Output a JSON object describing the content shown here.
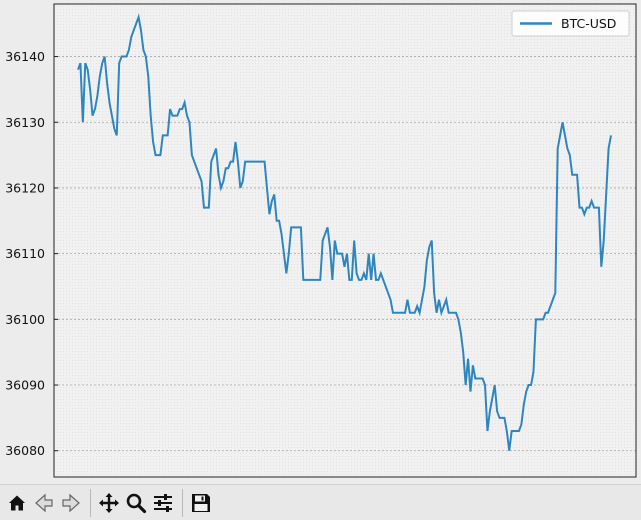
{
  "chart_data": {
    "type": "line",
    "title": "",
    "xlabel": "",
    "ylabel": "",
    "ylim": [
      36076,
      36148
    ],
    "yticks": [
      36080,
      36090,
      36100,
      36110,
      36120,
      36130,
      36140
    ],
    "grid": true,
    "legend_position": "top-right",
    "series": [
      {
        "name": "BTC-USD",
        "color": "#2e86c1",
        "values": [
          36138,
          36139,
          36130,
          36139,
          36138,
          36135,
          36131,
          36132,
          36134,
          36137,
          36139,
          36140,
          36136,
          36133,
          36131,
          36129,
          36128,
          36139,
          36140,
          36140,
          36140,
          36141,
          36143,
          36144,
          36145,
          36146,
          36144,
          36141,
          36140,
          36137,
          36131,
          36127,
          36125,
          36125,
          36125,
          36128,
          36128,
          36128,
          36132,
          36131,
          36131,
          36131,
          36132,
          36132,
          36133,
          36131,
          36130,
          36125,
          36124,
          36123,
          36122,
          36121,
          36117,
          36117,
          36117,
          36124,
          36125,
          36126,
          36122,
          36120,
          36121,
          36123,
          36123,
          36124,
          36124,
          36127,
          36124,
          36120,
          36121,
          36124,
          36124,
          36124,
          36124,
          36124,
          36124,
          36124,
          36124,
          36124,
          36120,
          36116,
          36118,
          36119,
          36115,
          36115,
          36113,
          36110,
          36107,
          36110,
          36114,
          36114,
          36114,
          36114,
          36114,
          36106,
          36106,
          36106,
          36106,
          36106,
          36106,
          36106,
          36106,
          36112,
          36113,
          36114,
          36111,
          36106,
          36112,
          36110,
          36110,
          36110,
          36108,
          36110,
          36106,
          36106,
          36112,
          36107,
          36106,
          36106,
          36107,
          36106,
          36110,
          36106,
          36110,
          36106,
          36106,
          36107,
          36106,
          36105,
          36104,
          36103,
          36101,
          36101,
          36101,
          36101,
          36101,
          36101,
          36103,
          36101,
          36101,
          36101,
          36102,
          36101,
          36103,
          36105,
          36109,
          36111,
          36112,
          36104,
          36101,
          36103,
          36101,
          36102,
          36103,
          36101,
          36101,
          36101,
          36101,
          36100,
          36098,
          36095,
          36090,
          36094,
          36089,
          36093,
          36091,
          36091,
          36091,
          36091,
          36090,
          36083,
          36086,
          36088,
          36090,
          36086,
          36085,
          36085,
          36085,
          36083,
          36080,
          36083,
          36083,
          36083,
          36083,
          36084,
          36087,
          36089,
          36090,
          36090,
          36092,
          36100,
          36100,
          36100,
          36100,
          36101,
          36101,
          36102,
          36103,
          36104,
          36126,
          36128,
          36130,
          36128,
          36126,
          36125,
          36122,
          36122,
          36122,
          36117,
          36117,
          36116,
          36117,
          36117,
          36118,
          36117,
          36117,
          36117,
          36108,
          36112,
          36119,
          36126,
          36128
        ]
      }
    ]
  },
  "toolbar": {
    "buttons": [
      {
        "name": "home-button",
        "icon": "home-icon"
      },
      {
        "name": "back-button",
        "icon": "back-arrow-icon"
      },
      {
        "name": "forward-button",
        "icon": "forward-arrow-icon"
      },
      {
        "name": "pan-button",
        "icon": "move-arrows-icon"
      },
      {
        "name": "zoom-button",
        "icon": "magnifier-icon"
      },
      {
        "name": "configure-subplots-button",
        "icon": "sliders-icon"
      },
      {
        "name": "save-button",
        "icon": "floppy-disk-icon"
      }
    ]
  }
}
